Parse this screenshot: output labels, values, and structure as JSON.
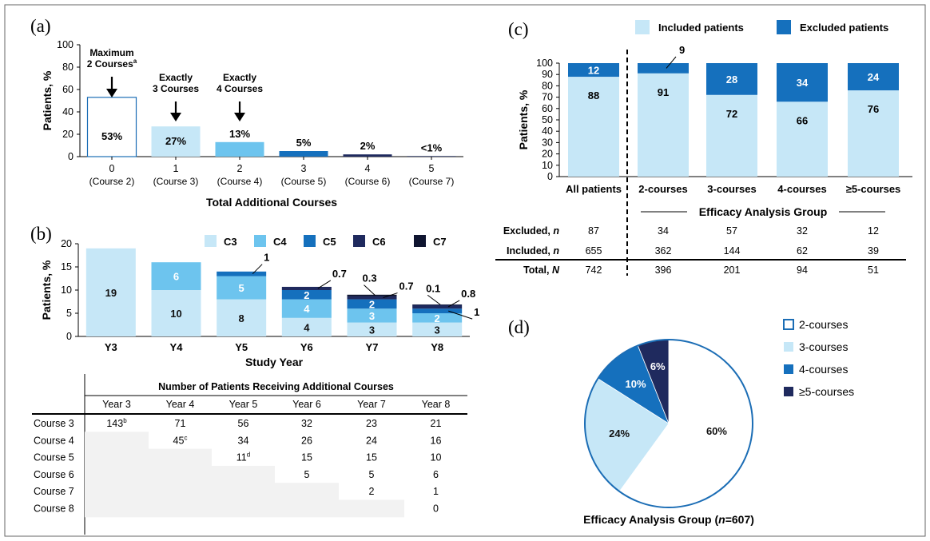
{
  "colors": {
    "light": "#c6e7f7",
    "mid": "#6dc4ee",
    "dark": "#1570bd",
    "navy": "#1f2a5e",
    "black": "#0f1530",
    "outline": "#1b6db5",
    "grid_gray": "#f2f2f2"
  },
  "panels": {
    "a": "(a)",
    "b": "(b)",
    "c": "(c)",
    "d": "(d)"
  },
  "chart_data": [
    {
      "panel": "a",
      "type": "bar",
      "xlabel": "Total Additional Courses",
      "ylabel": "Patients, %",
      "ylim": [
        0,
        100
      ],
      "yticks": [
        "0",
        "20",
        "40",
        "60",
        "80",
        "100"
      ],
      "categories": [
        "0",
        "1",
        "2",
        "3",
        "4",
        "5"
      ],
      "sublabels": [
        "(Course 2)",
        "(Course 3)",
        "(Course 4)",
        "(Course 5)",
        "(Course 6)",
        "(Course 7)"
      ],
      "values": [
        53,
        27,
        13,
        5,
        2,
        0.5
      ],
      "data_labels": [
        "53%",
        "27%",
        "13%",
        "5%",
        "2%",
        "<1%"
      ],
      "annotations": [
        {
          "line1": "Maximum",
          "line2": "2 Courses",
          "sup": "a"
        },
        {
          "line1": "Exactly",
          "line2": "3 Courses",
          "sup": ""
        },
        {
          "line1": "Exactly",
          "line2": "4 Courses",
          "sup": ""
        }
      ]
    },
    {
      "panel": "b",
      "type": "bar",
      "stacked": true,
      "xlabel": "Study Year",
      "ylabel": "Patients, %",
      "ylim": [
        0,
        20
      ],
      "yticks": [
        "0",
        "5",
        "10",
        "15",
        "20"
      ],
      "categories": [
        "Y3",
        "Y4",
        "Y5",
        "Y6",
        "Y7",
        "Y8"
      ],
      "series": [
        {
          "name": "C3",
          "values": [
            19,
            10,
            8,
            4,
            3,
            3
          ]
        },
        {
          "name": "C4",
          "values": [
            0,
            6,
            5,
            4,
            3,
            2
          ]
        },
        {
          "name": "C5",
          "values": [
            0,
            0,
            1,
            2,
            2,
            1
          ]
        },
        {
          "name": "C6",
          "values": [
            0,
            0,
            0,
            0.7,
            0.7,
            0.8
          ]
        },
        {
          "name": "C7",
          "values": [
            0,
            0,
            0,
            0,
            0.3,
            0.1
          ]
        }
      ],
      "inside_labels": [
        [
          "19",
          "",
          "",
          "",
          ""
        ],
        [
          "10",
          "6",
          "",
          "",
          ""
        ],
        [
          "8",
          "5",
          "",
          "",
          ""
        ],
        [
          "4",
          "4",
          "2",
          "",
          ""
        ],
        [
          "3",
          "3",
          "2",
          "",
          ""
        ],
        [
          "3",
          "2",
          "",
          "",
          ""
        ]
      ],
      "callouts": [
        {
          "col": 2,
          "text": "1"
        },
        {
          "col": 3,
          "text": "0.7"
        },
        {
          "col": 4,
          "text": "0.3"
        },
        {
          "col": 4,
          "text": "0.7"
        },
        {
          "col": 5,
          "text": "0.1"
        },
        {
          "col": 5,
          "text": "0.8"
        },
        {
          "col": 5,
          "text": "1"
        }
      ],
      "legend": [
        "C3",
        "C4",
        "C5",
        "C6",
        "C7"
      ]
    },
    {
      "panel": "c",
      "type": "bar",
      "stacked": true,
      "ylabel": "Patients, %",
      "ylim": [
        0,
        100
      ],
      "yticks": [
        "0",
        "10",
        "20",
        "30",
        "40",
        "50",
        "60",
        "70",
        "80",
        "90",
        "100"
      ],
      "categories": [
        "All patients",
        "2-courses",
        "3-courses",
        "4-courses",
        "≥5-courses"
      ],
      "series": [
        {
          "name": "Included patients",
          "values": [
            88,
            91,
            72,
            66,
            76
          ]
        },
        {
          "name": "Excluded patients",
          "values": [
            12,
            9,
            28,
            34,
            24
          ]
        }
      ],
      "group_label": "Efficacy Analysis Group"
    },
    {
      "panel": "d",
      "type": "pie",
      "title": "Efficacy Analysis Group (n=607)",
      "labels": [
        "2-courses",
        "3-courses",
        "4-courses",
        "≥5-courses"
      ],
      "values": [
        60,
        24,
        10,
        6
      ],
      "data_labels": [
        "60%",
        "24%",
        "10%",
        "6%"
      ]
    }
  ],
  "table_b": {
    "title": "Number of Patients Receiving Additional Courses",
    "columns": [
      "Year 3",
      "Year 4",
      "Year 5",
      "Year 6",
      "Year 7",
      "Year 8"
    ],
    "rows": [
      {
        "label": "Course 3",
        "cells": [
          "143",
          "71",
          "56",
          "32",
          "23",
          "21"
        ],
        "sup": [
          "b",
          "",
          "",
          "",
          "",
          ""
        ]
      },
      {
        "label": "Course 4",
        "cells": [
          "",
          "45",
          "34",
          "26",
          "24",
          "16"
        ],
        "sup": [
          "",
          "c",
          "",
          "",
          "",
          ""
        ]
      },
      {
        "label": "Course 5",
        "cells": [
          "",
          "",
          "11",
          "15",
          "15",
          "10"
        ],
        "sup": [
          "",
          "",
          "d",
          "",
          "",
          ""
        ]
      },
      {
        "label": "Course 6",
        "cells": [
          "",
          "",
          "",
          "5",
          "5",
          "6"
        ],
        "sup": [
          "",
          "",
          "",
          "",
          "",
          ""
        ]
      },
      {
        "label": "Course 7",
        "cells": [
          "",
          "",
          "",
          "",
          "2",
          "1"
        ],
        "sup": [
          "",
          "",
          "",
          "",
          "",
          ""
        ]
      },
      {
        "label": "Course 8",
        "cells": [
          "",
          "",
          "",
          "",
          "",
          "0"
        ],
        "sup": [
          "",
          "",
          "",
          "",
          "",
          ""
        ]
      }
    ]
  },
  "table_c": {
    "rows": [
      {
        "label": "Excluded, ",
        "label_italic": "n",
        "cells": [
          "87",
          "34",
          "57",
          "32",
          "12"
        ]
      },
      {
        "label": "Included, ",
        "label_italic": "n",
        "cells": [
          "655",
          "362",
          "144",
          "62",
          "39"
        ]
      },
      {
        "label": "Total, ",
        "label_italic": "N",
        "cells": [
          "742",
          "396",
          "201",
          "94",
          "51"
        ]
      }
    ]
  },
  "pie_title": {
    "pre": "Efficacy Analysis Group (",
    "italic": "n",
    "post": "=607)"
  }
}
